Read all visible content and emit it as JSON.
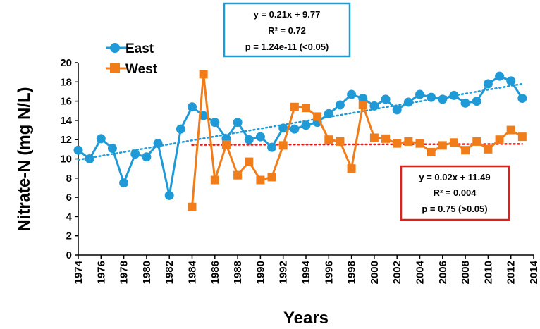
{
  "chart_data": {
    "type": "line",
    "xlabel": "Years",
    "ylabel": "Nitrate-N (mg N/L)",
    "xlim": [
      1974,
      2014
    ],
    "ylim": [
      0,
      20
    ],
    "x_ticks": [
      1974,
      1976,
      1978,
      1980,
      1982,
      1984,
      1986,
      1988,
      1990,
      1992,
      1994,
      1996,
      1998,
      2000,
      2002,
      2004,
      2006,
      2008,
      2010,
      2012,
      2014
    ],
    "y_ticks": [
      0,
      2,
      4,
      6,
      8,
      10,
      12,
      14,
      16,
      18,
      20
    ],
    "legend_position": "top-left",
    "series": [
      {
        "name": "East",
        "color": "#1f9ad6",
        "marker": "circle",
        "x": [
          1974,
          1975,
          1976,
          1977,
          1978,
          1979,
          1980,
          1981,
          1982,
          1983,
          1984,
          1985,
          1986,
          1987,
          1988,
          1989,
          1990,
          1991,
          1992,
          1993,
          1994,
          1995,
          1996,
          1997,
          1998,
          1999,
          2000,
          2001,
          2002,
          2003,
          2004,
          2005,
          2006,
          2007,
          2008,
          2009,
          2010,
          2011,
          2012,
          2013
        ],
        "y": [
          10.9,
          10.0,
          12.1,
          11.1,
          7.5,
          10.5,
          10.2,
          11.6,
          6.2,
          13.1,
          15.4,
          14.5,
          13.8,
          12.1,
          13.8,
          12.0,
          12.3,
          11.2,
          13.2,
          13.1,
          13.5,
          13.8,
          14.7,
          15.6,
          16.7,
          16.3,
          15.5,
          16.2,
          15.1,
          15.9,
          16.7,
          16.4,
          16.2,
          16.6,
          15.8,
          16.0,
          17.8,
          18.6,
          18.1,
          16.3
        ]
      },
      {
        "name": "West",
        "color": "#f07d1a",
        "marker": "square",
        "x": [
          1984,
          1985,
          1986,
          1987,
          1988,
          1989,
          1990,
          1991,
          1992,
          1993,
          1994,
          1995,
          1996,
          1997,
          1998,
          1999,
          2000,
          2001,
          2002,
          2003,
          2004,
          2005,
          2006,
          2007,
          2008,
          2009,
          2010,
          2011,
          2012,
          2013
        ],
        "y": [
          5.0,
          18.8,
          7.8,
          11.5,
          8.3,
          9.7,
          7.8,
          8.1,
          11.4,
          15.4,
          15.3,
          14.4,
          12.0,
          11.8,
          9.0,
          15.6,
          12.2,
          12.1,
          11.6,
          11.8,
          11.6,
          10.7,
          11.4,
          11.7,
          10.9,
          11.8,
          11.0,
          12.0,
          13.0,
          12.3
        ]
      }
    ],
    "trendlines": [
      {
        "series": "East",
        "color": "#1f9ad6",
        "style": "dotted",
        "x": [
          1974,
          2013
        ],
        "y": [
          9.9,
          17.8
        ]
      },
      {
        "series": "West",
        "color": "#e0201c",
        "style": "dotted",
        "x": [
          1984,
          2013
        ],
        "y": [
          11.45,
          11.55
        ]
      }
    ],
    "annotations": [
      {
        "name": "east-regression-box",
        "border_color": "#1f9ad6",
        "lines": [
          "y = 0.21x + 9.77",
          "R² = 0.72",
          "p = 1.24e-11 (<0.05)"
        ]
      },
      {
        "name": "west-regression-box",
        "border_color": "#e0201c",
        "lines": [
          "y = 0.02x + 11.49",
          "R² = 0.004",
          "p = 0.75 (>0.05)"
        ]
      }
    ]
  }
}
